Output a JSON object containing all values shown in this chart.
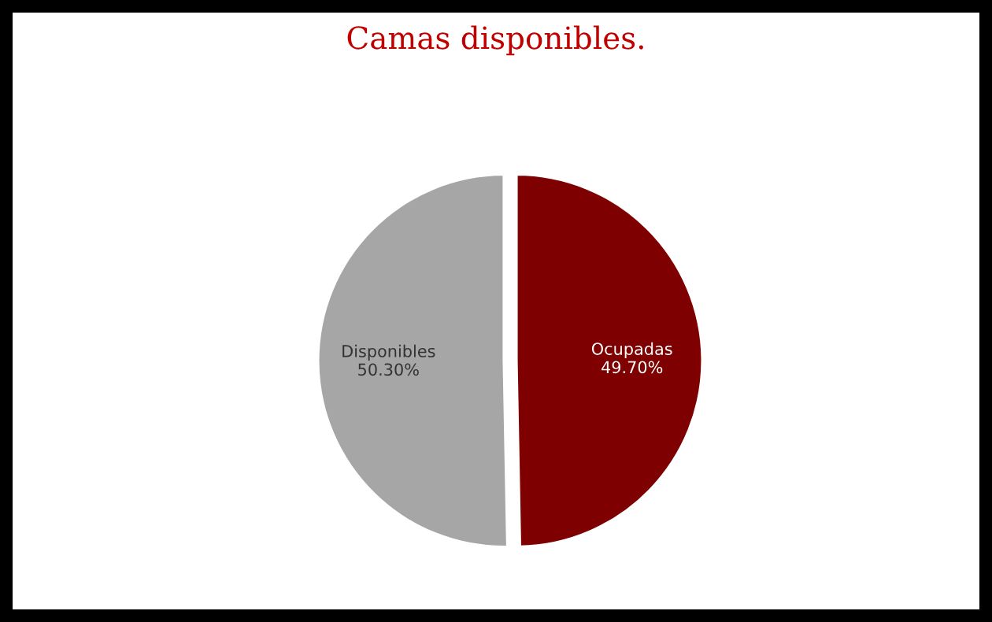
{
  "chart_data": {
    "type": "pie",
    "title": "Camas disponibles.",
    "categories": [
      "Ocupadas",
      "Disponibles"
    ],
    "values": [
      49.7,
      50.3
    ],
    "colors": [
      "#7f0000",
      "#a6a6a6"
    ],
    "value_labels": [
      "49.70%",
      "50.30%"
    ],
    "legend": false
  }
}
